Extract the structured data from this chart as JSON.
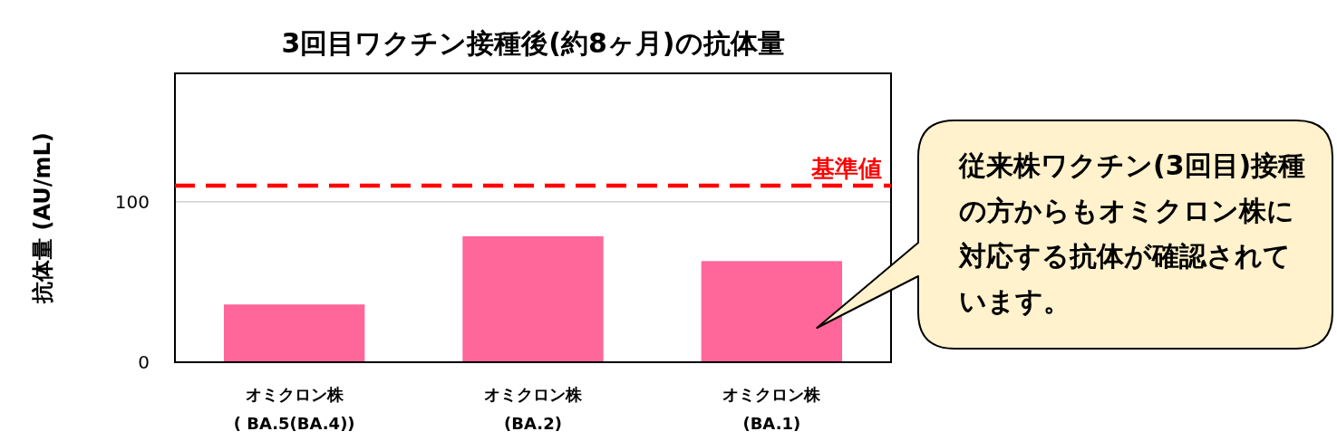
{
  "chart_data": {
    "type": "bar",
    "title": "3回目ワクチン接種後(約8ヶ月)の抗体量",
    "ylabel": "抗体量 (AU/mL)",
    "categories": [
      "オミクロン株\n( BA.5(BA.4))",
      "オミクロン株\n(BA.2)",
      "オミクロン株\n(BA.1)"
    ],
    "values": [
      36,
      78.5,
      63
    ],
    "color": "#ff6699",
    "ylim": [
      0,
      180
    ],
    "yticks": [
      0,
      100
    ],
    "grid": "y",
    "ref_lines": [
      {
        "axis": "y",
        "value": 110,
        "label": "基準値",
        "color": "#ff0000",
        "line_style": "dashed"
      }
    ],
    "annotations": [
      "従来株ワクチン(3回目)接種の方からもオミクロン株に対応する抗体が確認されています。"
    ]
  }
}
